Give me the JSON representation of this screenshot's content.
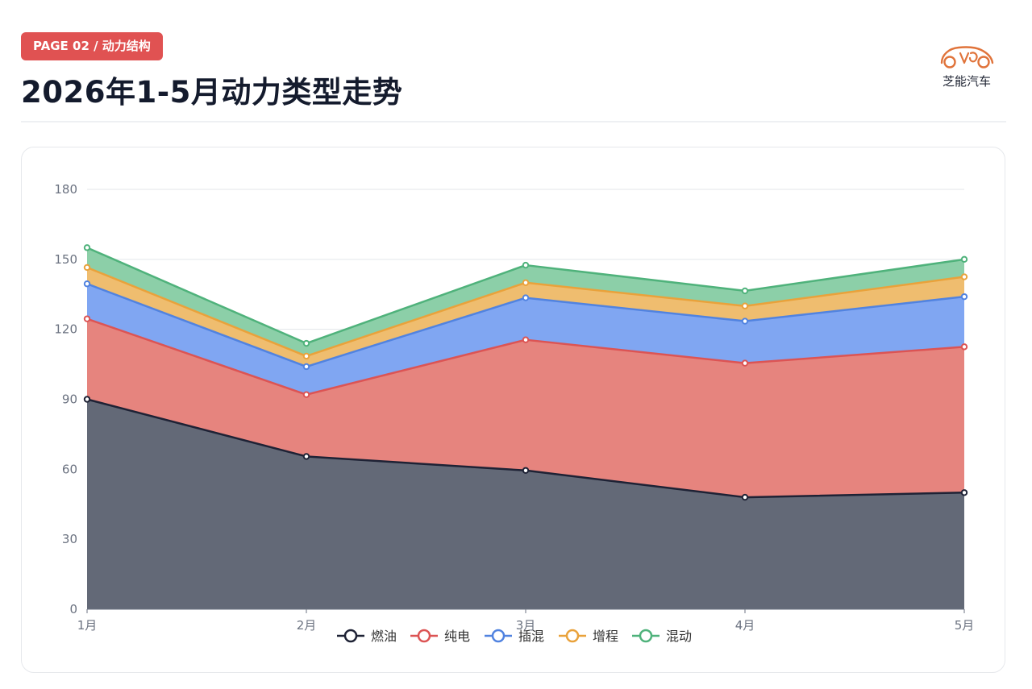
{
  "header": {
    "badge": "PAGE 02 / 动力结构",
    "title": "2026年1-5月动力类型走势"
  },
  "logo": {
    "text": "芝能汽车",
    "icon": "car-outline-icon"
  },
  "chart_data": {
    "type": "area",
    "stacked": true,
    "categories": [
      "1月",
      "2月",
      "3月",
      "4月",
      "5月"
    ],
    "ylim": [
      0,
      180
    ],
    "yticks": [
      0,
      30,
      60,
      90,
      120,
      150,
      180
    ],
    "grid": true,
    "legend_position": "bottom",
    "series": [
      {
        "name": "燃油",
        "values": [
          90,
          65.5,
          59.5,
          48,
          50
        ],
        "color": "#1e2235",
        "fill": "#636977"
      },
      {
        "name": "纯电",
        "values": [
          34.5,
          26.5,
          56,
          57.5,
          62.5
        ],
        "color": "#dc5454",
        "fill": "#e6847e"
      },
      {
        "name": "插混",
        "values": [
          15,
          12,
          18,
          18,
          21.5
        ],
        "color": "#5183e0",
        "fill": "#80a6f2"
      },
      {
        "name": "增程",
        "values": [
          7,
          4.5,
          6.5,
          6.5,
          8.5
        ],
        "color": "#e9a23b",
        "fill": "#efbd6f"
      },
      {
        "name": "混动",
        "values": [
          8.5,
          5.5,
          7.5,
          6.5,
          7.5
        ],
        "color": "#4fb27b",
        "fill": "#8ccfa8"
      }
    ]
  }
}
